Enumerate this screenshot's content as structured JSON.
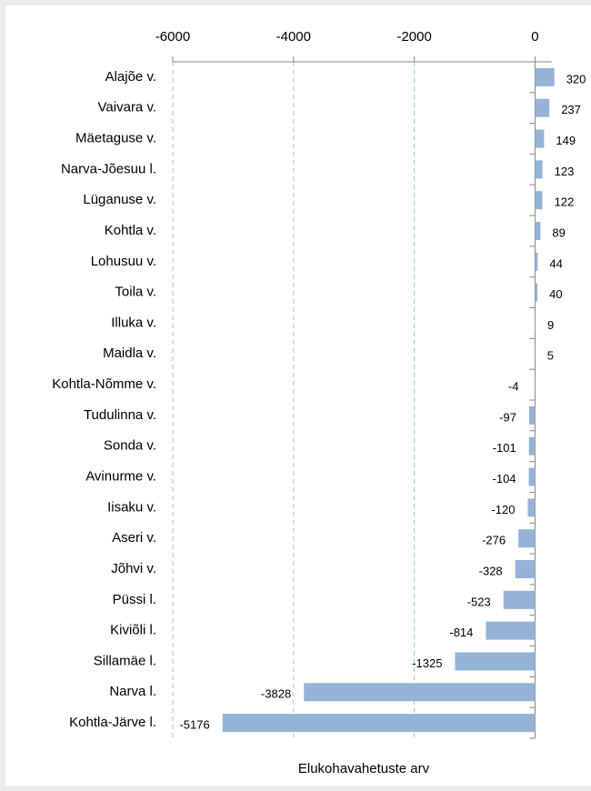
{
  "chart_data": {
    "type": "bar",
    "orientation": "horizontal",
    "x_label": "Elukohavahetuste arv",
    "categories": [
      "Alajõe v.",
      "Vaivara v.",
      "Mäetaguse v.",
      "Narva-Jõesuu l.",
      "Lüganuse v.",
      "Kohtla v.",
      "Lohusuu v.",
      "Toila v.",
      "Illuka v.",
      "Maidla v.",
      "Kohtla-Nõmme v.",
      "Tudulinna v.",
      "Sonda v.",
      "Avinurme v.",
      "Iisaku v.",
      "Aseri v.",
      "Jõhvi v.",
      "Püssi l.",
      "Kiviõli l.",
      "Sillamäe l.",
      "Narva l.",
      "Kohtla-Järve l."
    ],
    "values": [
      320,
      237,
      149,
      123,
      122,
      89,
      44,
      40,
      9,
      5,
      -4,
      -97,
      -101,
      -104,
      -120,
      -276,
      -328,
      -523,
      -814,
      -1325,
      -3828,
      -5176
    ],
    "color": "#95b3d7",
    "xlim": [
      -6000,
      500
    ],
    "xticks": [
      -6000,
      -4000,
      -2000,
      0
    ],
    "grid": true
  }
}
